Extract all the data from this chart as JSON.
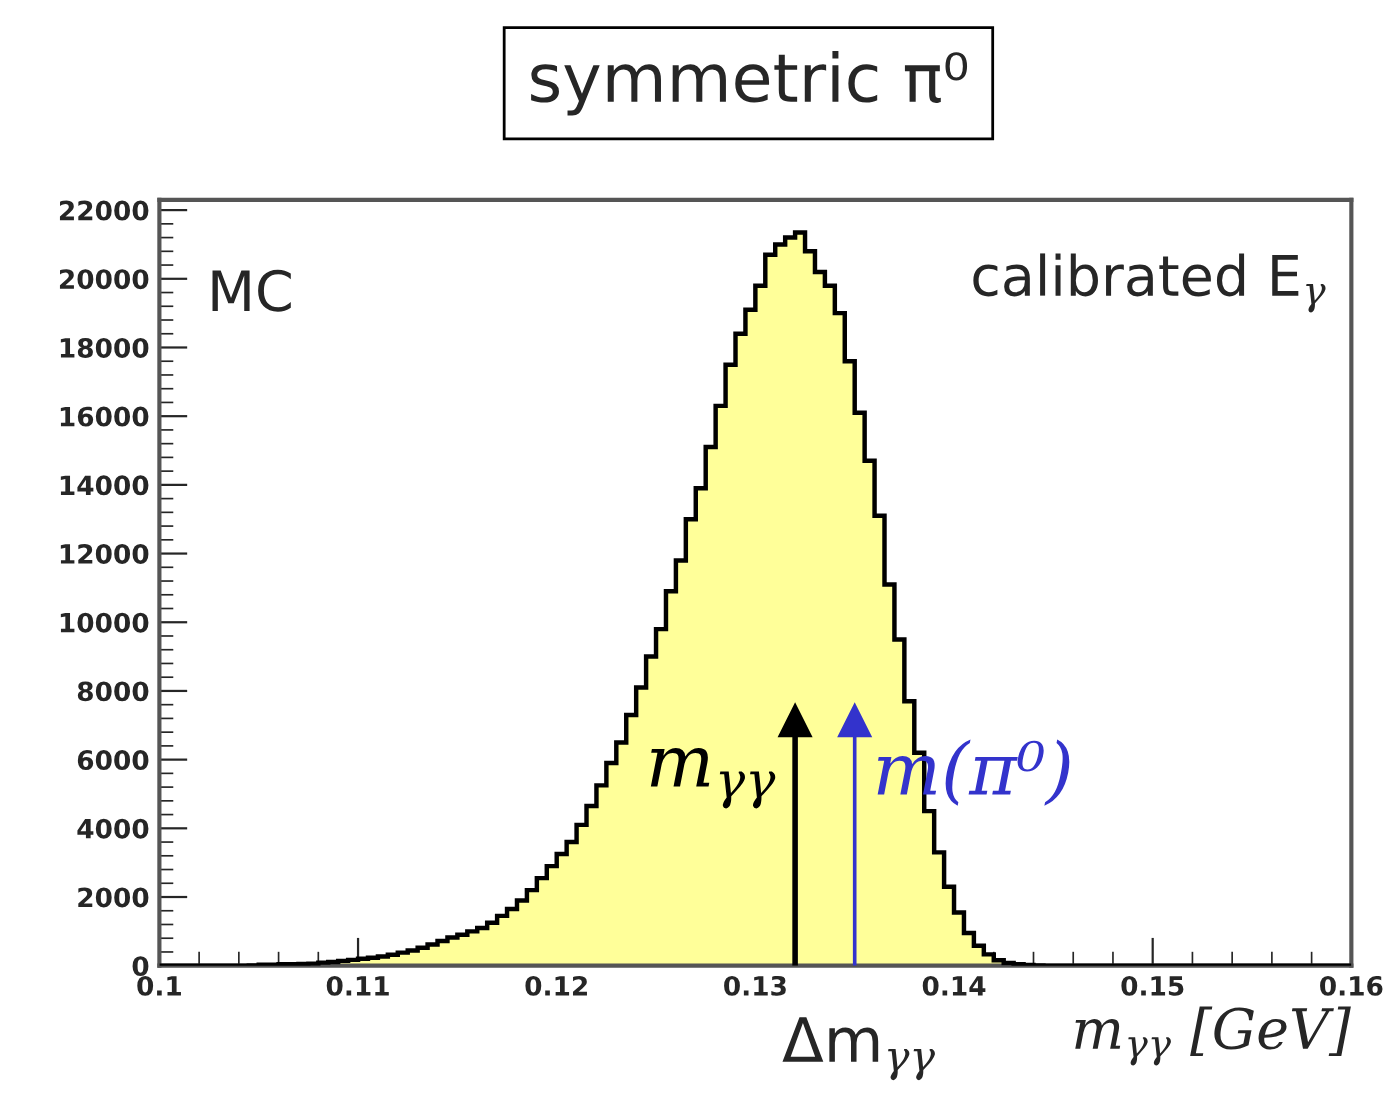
{
  "chart_data": {
    "type": "histogram",
    "title": "symmetric π⁰",
    "xlabel": "m$_{γγ}$ [GeV]",
    "bins": [
      0.1,
      0.1005,
      0.101,
      0.1015,
      0.102,
      0.1025,
      0.103,
      0.1035,
      0.104,
      0.1045,
      0.105,
      0.1055,
      0.106,
      0.1065,
      0.107,
      0.1075,
      0.108,
      0.1085,
      0.109,
      0.1095,
      0.11,
      0.1105,
      0.111,
      0.1115,
      0.112,
      0.1125,
      0.113,
      0.1135,
      0.114,
      0.1145,
      0.115,
      0.1155,
      0.116,
      0.1165,
      0.117,
      0.1175,
      0.118,
      0.1185,
      0.119,
      0.1195,
      0.12,
      0.1205,
      0.121,
      0.1215,
      0.122,
      0.1225,
      0.123,
      0.1235,
      0.124,
      0.1245,
      0.125,
      0.1255,
      0.126,
      0.1265,
      0.127,
      0.1275,
      0.128,
      0.1285,
      0.129,
      0.1295,
      0.13,
      0.1305,
      0.131,
      0.1315,
      0.132,
      0.1325,
      0.133,
      0.1335,
      0.134,
      0.1345,
      0.135,
      0.1355,
      0.136,
      0.1365,
      0.137,
      0.1375,
      0.138,
      0.1385,
      0.139,
      0.1395,
      0.14,
      0.1405,
      0.141,
      0.1415,
      0.142,
      0.1425,
      0.143,
      0.1435,
      0.144,
      0.1445,
      0.145,
      0.1455,
      0.146,
      0.1465,
      0.147,
      0.1475,
      0.148,
      0.1485,
      0.149,
      0.1495,
      0.15,
      0.1505,
      0.151,
      0.1515,
      0.152,
      0.1525,
      0.153,
      0.1535,
      0.154,
      0.1545,
      0.155,
      0.1555,
      0.156,
      0.1565,
      0.157,
      0.1575,
      0.158,
      0.1585,
      0.159,
      0.1595,
      0.16
    ],
    "values": [
      0,
      0,
      0,
      0,
      0,
      0,
      0,
      0,
      0,
      10,
      30,
      30,
      40,
      40,
      50,
      60,
      90,
      110,
      140,
      170,
      200,
      230,
      270,
      320,
      380,
      440,
      520,
      620,
      720,
      820,
      900,
      1000,
      1100,
      1250,
      1450,
      1650,
      1900,
      2200,
      2550,
      2900,
      3250,
      3600,
      4100,
      4650,
      5250,
      5900,
      6500,
      7300,
      8100,
      9000,
      9800,
      10900,
      11800,
      13000,
      13900,
      15100,
      16300,
      17500,
      18400,
      19100,
      19800,
      20700,
      21000,
      21200,
      21350,
      20800,
      20200,
      19800,
      19000,
      17600,
      16100,
      14700,
      13100,
      11100,
      9500,
      7700,
      6200,
      4500,
      3300,
      2300,
      1550,
      950,
      580,
      330,
      160,
      80,
      40,
      20,
      10,
      0,
      0,
      0,
      0,
      0,
      0,
      0,
      0,
      0,
      0,
      0,
      0,
      0,
      0,
      0,
      0,
      0,
      0,
      0,
      0,
      0,
      0,
      0,
      0,
      0,
      0,
      0,
      0,
      0,
      0,
      0
    ],
    "color": "#ffff99",
    "xlim": [
      0.1,
      0.16
    ],
    "xticks": [
      0.1,
      0.11,
      0.12,
      0.13,
      0.14,
      0.15,
      0.16
    ],
    "ylim": [
      0,
      22300
    ],
    "yticks": [
      0,
      2000,
      4000,
      6000,
      8000,
      10000,
      12000,
      14000,
      16000,
      18000,
      20000,
      22000
    ],
    "ref_lines": [
      {
        "axis": "x",
        "value": 0.132,
        "label": "m$_{γγ}$",
        "color": "#000000"
      },
      {
        "axis": "x",
        "value": 0.135,
        "label": "m(π⁰)",
        "color": "#3333cc"
      }
    ],
    "annotations": [
      "MC",
      "calibrated E$_{γ}$",
      "Δm$_{γγ}$"
    ],
    "grid": false,
    "legend": false
  }
}
